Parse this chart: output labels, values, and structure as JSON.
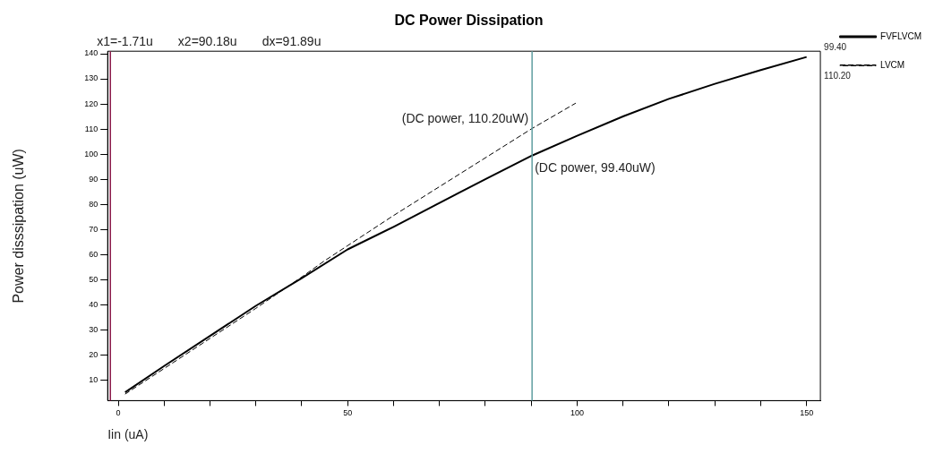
{
  "chart_data": {
    "type": "line",
    "title": "DC Power Dissipation",
    "xlabel": "Iin (uA)",
    "ylabel": "Power disssipation (uW)",
    "xlim": [
      -2.3,
      153
    ],
    "ylim": [
      1.7,
      141
    ],
    "xticks": [
      0,
      {
        "value": 10,
        "label": null
      },
      {
        "value": 20,
        "label": null
      },
      {
        "value": 30,
        "label": null
      },
      {
        "value": 40,
        "label": null
      },
      50,
      {
        "value": 60,
        "label": null
      },
      {
        "value": 70,
        "label": null
      },
      {
        "value": 80,
        "label": null
      },
      {
        "value": 90,
        "label": null
      },
      100,
      {
        "value": 110,
        "label": null
      },
      {
        "value": 120,
        "label": null
      },
      {
        "value": 130,
        "label": null
      },
      {
        "value": 140,
        "label": null
      },
      150
    ],
    "yticks": [
      10,
      20,
      30,
      40,
      50,
      60,
      70,
      80,
      90,
      100,
      110,
      120,
      130,
      140
    ],
    "grid": false,
    "legend": "top right",
    "marker": "none",
    "series": [
      {
        "name": "FVFLVCM",
        "color": "#000000",
        "line_style": "solid",
        "x": [
          1.5,
          10,
          20,
          30,
          40,
          50,
          60,
          70,
          80,
          90.18,
          100,
          110,
          120,
          130,
          140,
          150
        ],
        "values": [
          5,
          15.5,
          27.5,
          39.5,
          50.5,
          62,
          71,
          80.5,
          90,
          99.4,
          107.3,
          115,
          122,
          128,
          133.5,
          138.7
        ]
      },
      {
        "name": "LVCM",
        "color": "#000000",
        "line_style": "dashed",
        "x": [
          1.5,
          10,
          20,
          30,
          40,
          45,
          50,
          60,
          70,
          80,
          90.18,
          99.7
        ],
        "values": [
          4.3,
          14.5,
          26.5,
          38.5,
          51,
          57.5,
          63.5,
          75.5,
          87,
          98.5,
          110.2,
          120.3
        ]
      }
    ],
    "ref_lines": [
      {
        "axis": "x",
        "value": -1.71,
        "color": "#8b1a4a"
      },
      {
        "axis": "x",
        "value": 90.18,
        "color": "#5f9ea0"
      }
    ],
    "annotations": [
      "x1=-1.71u",
      "x2=90.18u",
      "dx=91.89u",
      {
        "text": "(DC power, 110.20uW)",
        "x": 90.18,
        "y": 110.2
      },
      {
        "text": "(DC power, 99.40uW)",
        "x": 90.18,
        "y": 99.4
      },
      "99.40",
      "110.20"
    ]
  }
}
